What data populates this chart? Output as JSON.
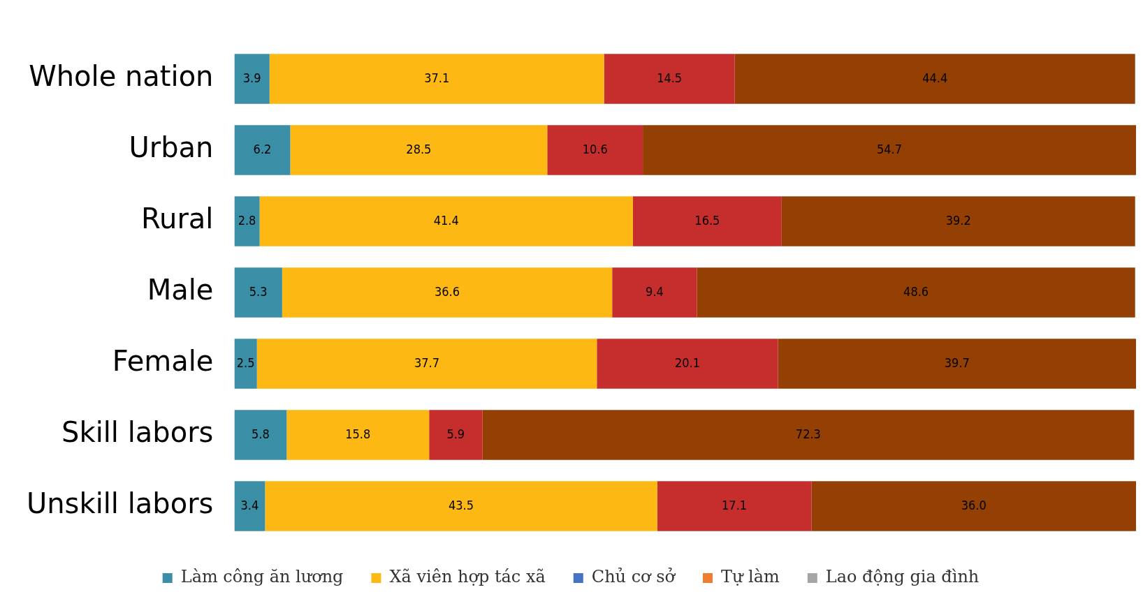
{
  "chart_data": {
    "type": "bar",
    "orientation": "horizontal",
    "stacked": true,
    "categories": [
      "Whole nation",
      "Urban",
      "Rural",
      "Male",
      "Female",
      "Skill labors",
      "Unskill labors"
    ],
    "series": [
      {
        "name": "Làm công ăn lương",
        "color": "#3a8fa6",
        "values": [
          3.9,
          6.2,
          2.8,
          5.3,
          2.5,
          5.8,
          3.4
        ]
      },
      {
        "name": "Xã viên hợp tác xã",
        "color": "#fdb813",
        "values": [
          37.1,
          28.5,
          41.4,
          36.6,
          37.7,
          15.8,
          43.5
        ]
      },
      {
        "color": "#c62d2d",
        "values": [
          14.5,
          10.6,
          16.5,
          9.4,
          20.1,
          5.9,
          17.1
        ]
      },
      {
        "color": "#943f03",
        "values": [
          44.4,
          54.7,
          39.2,
          48.6,
          39.7,
          72.3,
          36.0
        ],
        "value_labels": [
          "44.4",
          "54.7",
          "39.2",
          "48.6",
          "39.7",
          "72.3",
          "36.0"
        ]
      },
      {
        "name": "Chủ cơ sở",
        "color": "#4472c4",
        "values": [
          null,
          null,
          null,
          null,
          null,
          null,
          null
        ]
      },
      {
        "name": "Tự làm",
        "color": "#ed7d31",
        "values": [
          null,
          null,
          null,
          null,
          null,
          null,
          null
        ]
      },
      {
        "name": "Lao động gia đình",
        "color": "#a5a5a5",
        "values": [
          null,
          null,
          null,
          null,
          null,
          null,
          null
        ]
      }
    ],
    "xlim": [
      0,
      100
    ],
    "tick_labels": "y",
    "grid": false,
    "legend": "bottom",
    "data_labels": true
  }
}
